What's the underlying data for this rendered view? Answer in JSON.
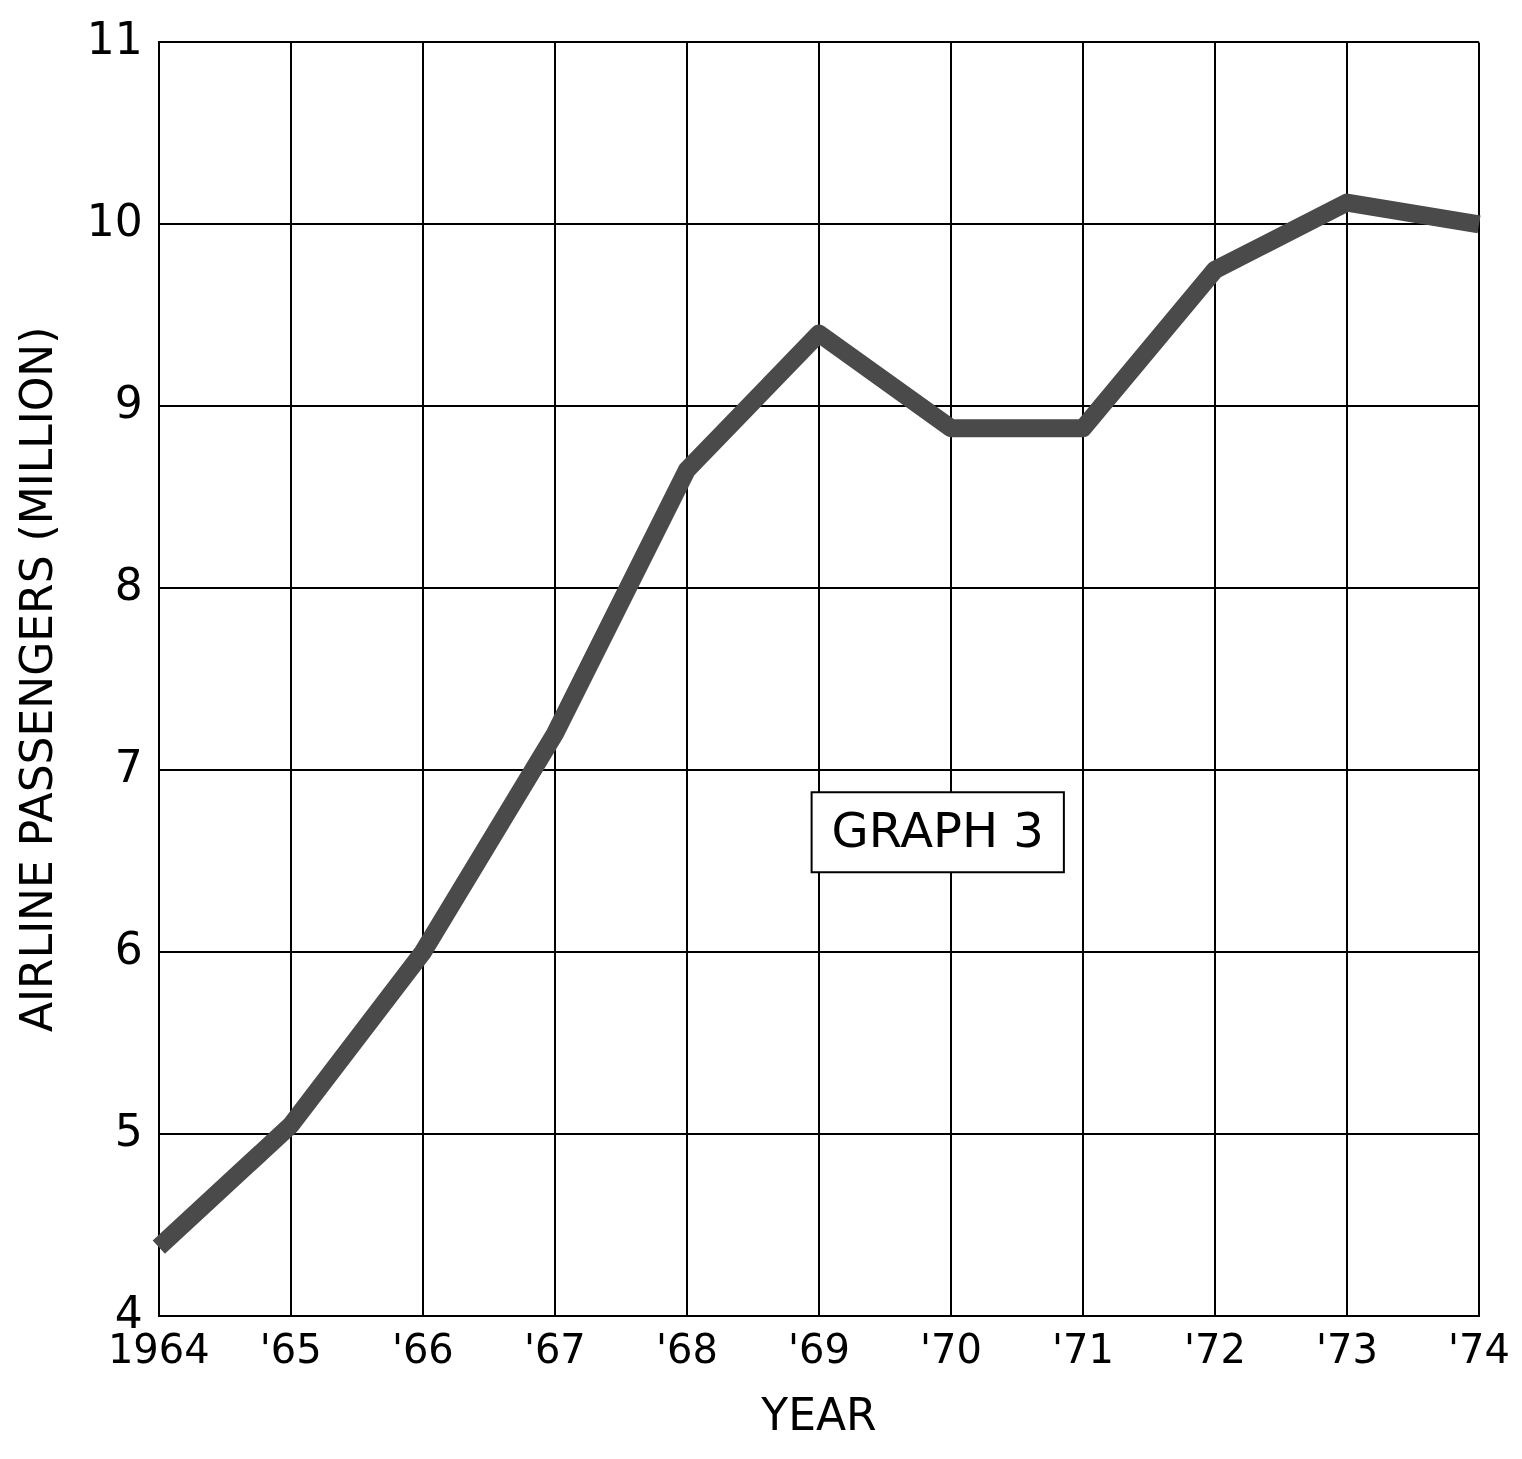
{
  "chart_data": {
    "type": "line",
    "xlabel": "YEAR",
    "ylabel": "AIRLINE PASSENGERS (MILLION)",
    "categories": [
      "1964",
      "'65",
      "'66",
      "'67",
      "'68",
      "'69",
      "'70",
      "'71",
      "'72",
      "'73",
      "'74"
    ],
    "series": [
      {
        "color": "#4a4a4a",
        "values": [
          4.38,
          5.05,
          6.0,
          7.2,
          8.65,
          9.4,
          8.88,
          8.88,
          9.75,
          10.12,
          10.0
        ]
      }
    ],
    "ylim": [
      4,
      11
    ],
    "yticks": [
      4,
      5,
      6,
      7,
      8,
      9,
      10,
      11
    ],
    "grid": true,
    "legend": false,
    "marker": "none",
    "line_style": "solid",
    "annotations": [
      "GRAPH 3"
    ]
  }
}
